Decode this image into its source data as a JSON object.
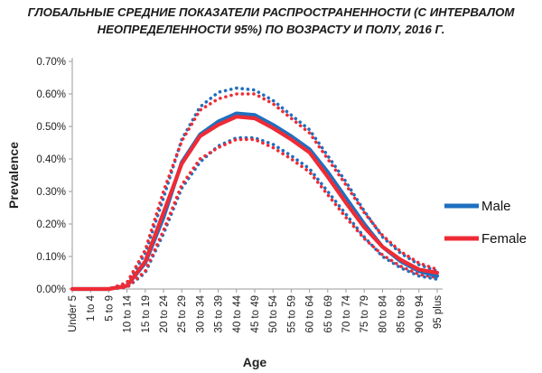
{
  "title_line1": "ГЛОБАЛЬНЫЕ СРЕДНИЕ ПОКАЗАТЕЛИ РАСПРОСТРАНЕННОСТИ (С ИНТЕРВАЛОМ",
  "title_line2": "НЕОПРЕДЕЛЕННОСТИ 95%) ПО ВОЗРАСТУ И ПОЛУ, 2016 Г.",
  "colors": {
    "male": "#1f6fc0",
    "female": "#ee2b35",
    "axis": "#9a9a9a",
    "grid": "#e0e0e0"
  },
  "chart_data": {
    "type": "line",
    "xlabel": "Age",
    "ylabel": "Prevalence",
    "ylim": [
      0,
      0.7
    ],
    "yticks": [
      "0.00%",
      "0.10%",
      "0.20%",
      "0.30%",
      "0.40%",
      "0.50%",
      "0.60%",
      "0.70%"
    ],
    "categories": [
      "Under 5",
      "1 to 4",
      "5 to 9",
      "10 to 14",
      "15 to 19",
      "20 to 24",
      "25 to 29",
      "30 to 34",
      "35 to 39",
      "40 to 44",
      "45 to 49",
      "50 to 54",
      "55 to 59",
      "60 to 64",
      "65 to 69",
      "70 to 74",
      "75 to 79",
      "80 to 84",
      "85 to 89",
      "90 to 94",
      "95 plus"
    ],
    "legend_position": "right",
    "grid": false,
    "series": [
      {
        "name": "Male",
        "color": "#1f6fc0",
        "style": "solid",
        "values": [
          0.0,
          0.0,
          0.0,
          0.01,
          0.08,
          0.22,
          0.39,
          0.475,
          0.515,
          0.54,
          0.535,
          0.505,
          0.47,
          0.43,
          0.36,
          0.28,
          0.2,
          0.13,
          0.085,
          0.055,
          0.04
        ]
      },
      {
        "name": "Female",
        "color": "#ee2b35",
        "style": "solid",
        "values": [
          0.0,
          0.0,
          0.0,
          0.01,
          0.085,
          0.235,
          0.385,
          0.47,
          0.505,
          0.53,
          0.525,
          0.495,
          0.46,
          0.42,
          0.345,
          0.265,
          0.19,
          0.13,
          0.09,
          0.06,
          0.05
        ]
      },
      {
        "name": "",
        "color": "#1f6fc0",
        "style": "dotted",
        "values": [
          0.0,
          0.0,
          0.0,
          0.005,
          0.05,
          0.17,
          0.31,
          0.39,
          0.44,
          0.465,
          0.465,
          0.445,
          0.41,
          0.37,
          0.3,
          0.23,
          0.16,
          0.1,
          0.065,
          0.04,
          0.03
        ]
      },
      {
        "name": "",
        "color": "#1f6fc0",
        "style": "dotted",
        "values": [
          0.0,
          0.0,
          0.0,
          0.015,
          0.11,
          0.28,
          0.46,
          0.56,
          0.605,
          0.618,
          0.612,
          0.58,
          0.535,
          0.49,
          0.41,
          0.33,
          0.24,
          0.16,
          0.11,
          0.075,
          0.055
        ]
      },
      {
        "name": "",
        "color": "#ee2b35",
        "style": "dotted",
        "values": [
          0.0,
          0.0,
          0.0,
          0.005,
          0.055,
          0.18,
          0.32,
          0.4,
          0.435,
          0.46,
          0.46,
          0.435,
          0.4,
          0.36,
          0.29,
          0.22,
          0.155,
          0.105,
          0.07,
          0.045,
          0.035
        ]
      },
      {
        "name": "",
        "color": "#ee2b35",
        "style": "dotted",
        "values": [
          0.0,
          0.0,
          0.0,
          0.02,
          0.12,
          0.3,
          0.455,
          0.55,
          0.585,
          0.6,
          0.6,
          0.57,
          0.525,
          0.48,
          0.4,
          0.32,
          0.235,
          0.165,
          0.115,
          0.08,
          0.06
        ]
      }
    ]
  }
}
